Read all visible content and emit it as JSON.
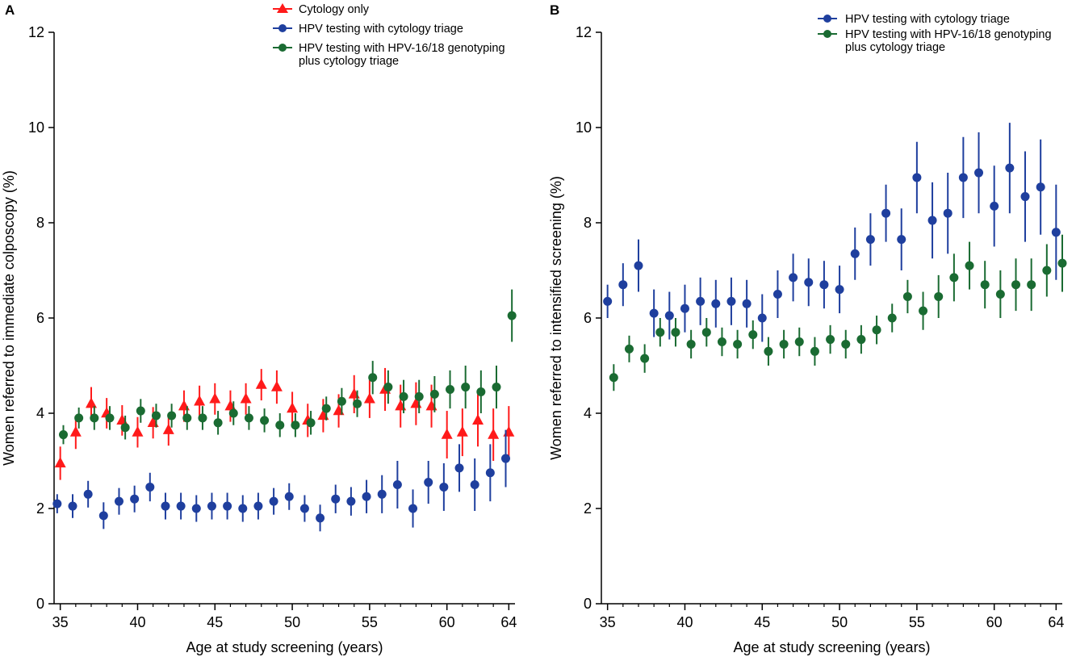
{
  "chart_data": [
    {
      "panel": "A",
      "type": "scatter",
      "xlabel": "Age at study screening (years)",
      "ylabel": "Women referred to immediate colposcopy (%)",
      "xlim": [
        34.6,
        64.4
      ],
      "ylim": [
        0,
        12
      ],
      "xticks": [
        35,
        40,
        45,
        50,
        55,
        60,
        64
      ],
      "yticks": [
        0,
        2,
        4,
        6,
        8,
        10,
        12
      ],
      "series": [
        {
          "name": "Cytology only",
          "color": "#ff1a1a",
          "marker": "triangle",
          "x": [
            35,
            36,
            37,
            38,
            39,
            40,
            41,
            42,
            43,
            44,
            45,
            46,
            47,
            48,
            49,
            50,
            51,
            52,
            53,
            54,
            55,
            56,
            57,
            58,
            59,
            60,
            61,
            62,
            63,
            64
          ],
          "y": [
            2.95,
            3.6,
            4.2,
            4.0,
            3.85,
            3.6,
            3.8,
            3.65,
            4.15,
            4.25,
            4.3,
            4.15,
            4.3,
            4.6,
            4.55,
            4.1,
            3.85,
            3.95,
            4.05,
            4.4,
            4.3,
            4.5,
            4.15,
            4.2,
            4.15,
            3.55,
            3.6,
            3.85,
            3.55,
            3.6
          ],
          "err": [
            0.35,
            0.35,
            0.35,
            0.32,
            0.32,
            0.32,
            0.33,
            0.33,
            0.33,
            0.33,
            0.33,
            0.33,
            0.33,
            0.33,
            0.35,
            0.35,
            0.35,
            0.35,
            0.35,
            0.4,
            0.4,
            0.45,
            0.45,
            0.45,
            0.45,
            0.5,
            0.5,
            0.55,
            0.55,
            0.55
          ]
        },
        {
          "name": "HPV testing with cytology triage",
          "color": "#1f3f9e",
          "marker": "circle",
          "x": [
            34.8,
            35.8,
            36.8,
            37.8,
            38.8,
            39.8,
            40.8,
            41.8,
            42.8,
            43.8,
            44.8,
            45.8,
            46.8,
            47.8,
            48.8,
            49.8,
            50.8,
            51.8,
            52.8,
            53.8,
            54.8,
            55.8,
            56.8,
            57.8,
            58.8,
            59.8,
            60.8,
            61.8,
            62.8,
            63.8
          ],
          "y": [
            2.1,
            2.05,
            2.3,
            1.85,
            2.15,
            2.2,
            2.45,
            2.05,
            2.05,
            2.0,
            2.05,
            2.05,
            2.0,
            2.05,
            2.15,
            2.25,
            2.0,
            1.8,
            2.2,
            2.15,
            2.25,
            2.3,
            2.5,
            2.0,
            2.55,
            2.45,
            2.85,
            2.5,
            2.75,
            3.05
          ],
          "err": [
            0.2,
            0.25,
            0.28,
            0.28,
            0.28,
            0.28,
            0.3,
            0.28,
            0.28,
            0.28,
            0.28,
            0.28,
            0.28,
            0.28,
            0.28,
            0.28,
            0.28,
            0.28,
            0.3,
            0.3,
            0.35,
            0.4,
            0.5,
            0.4,
            0.45,
            0.5,
            0.5,
            0.55,
            0.6,
            0.6
          ]
        },
        {
          "name": "HPV testing with HPV-16/18 genotyping plus cytology triage",
          "color": "#1a6b32",
          "marker": "circle",
          "x": [
            35.2,
            36.2,
            37.2,
            38.2,
            39.2,
            40.2,
            41.2,
            42.2,
            43.2,
            44.2,
            45.2,
            46.2,
            47.2,
            48.2,
            49.2,
            50.2,
            51.2,
            52.2,
            53.2,
            54.2,
            55.2,
            56.2,
            57.2,
            58.2,
            59.2,
            60.2,
            61.2,
            62.2,
            63.2,
            64.2
          ],
          "y": [
            3.55,
            3.9,
            3.9,
            3.9,
            3.7,
            4.05,
            3.95,
            3.95,
            3.9,
            3.9,
            3.8,
            4.0,
            3.9,
            3.85,
            3.75,
            3.75,
            3.8,
            4.1,
            4.25,
            4.2,
            4.75,
            4.55,
            4.35,
            4.35,
            4.4,
            4.5,
            4.55,
            4.45,
            4.55,
            6.05
          ],
          "err": [
            0.2,
            0.22,
            0.25,
            0.25,
            0.25,
            0.25,
            0.25,
            0.25,
            0.25,
            0.25,
            0.25,
            0.25,
            0.25,
            0.25,
            0.25,
            0.25,
            0.25,
            0.25,
            0.28,
            0.28,
            0.35,
            0.35,
            0.35,
            0.35,
            0.38,
            0.4,
            0.45,
            0.45,
            0.45,
            0.55
          ]
        }
      ]
    },
    {
      "panel": "B",
      "type": "scatter",
      "xlabel": "Age at study screening (years)",
      "ylabel": "Women referred to intensified screening (%)",
      "xlim": [
        34.6,
        64.4
      ],
      "ylim": [
        0,
        12
      ],
      "xticks": [
        35,
        40,
        45,
        50,
        55,
        60,
        64
      ],
      "yticks": [
        0,
        2,
        4,
        6,
        8,
        10,
        12
      ],
      "series": [
        {
          "name": "HPV testing with cytology triage",
          "color": "#1f3f9e",
          "marker": "circle",
          "x": [
            35.0,
            36.0,
            37.0,
            38.0,
            39.0,
            40.0,
            41.0,
            42.0,
            43.0,
            44.0,
            45.0,
            46.0,
            47.0,
            48.0,
            49.0,
            50.0,
            51.0,
            52.0,
            53.0,
            54.0,
            55.0,
            56.0,
            57.0,
            58.0,
            59.0,
            60.0,
            61.0,
            62.0,
            63.0,
            64.0
          ],
          "y": [
            6.35,
            6.7,
            7.1,
            6.1,
            6.05,
            6.2,
            6.35,
            6.3,
            6.35,
            6.3,
            6.0,
            6.5,
            6.85,
            6.75,
            6.7,
            6.6,
            7.35,
            7.65,
            8.2,
            7.65,
            8.95,
            8.05,
            8.2,
            8.95,
            9.05,
            8.35,
            9.15,
            8.55,
            8.75,
            7.8
          ],
          "err": [
            0.35,
            0.45,
            0.55,
            0.5,
            0.5,
            0.5,
            0.5,
            0.5,
            0.5,
            0.5,
            0.5,
            0.5,
            0.5,
            0.5,
            0.5,
            0.5,
            0.55,
            0.55,
            0.6,
            0.65,
            0.75,
            0.8,
            0.85,
            0.85,
            0.85,
            0.85,
            0.95,
            0.95,
            1.0,
            1.0
          ]
        },
        {
          "name": "HPV testing with HPV-16/18 genotyping plus cytology triage",
          "color": "#1a6b32",
          "marker": "circle",
          "x": [
            35.4,
            36.4,
            37.4,
            38.4,
            39.4,
            40.4,
            41.4,
            42.4,
            43.4,
            44.4,
            45.4,
            46.4,
            47.4,
            48.4,
            49.4,
            50.4,
            51.4,
            52.4,
            53.4,
            54.4,
            55.4,
            56.4,
            57.4,
            58.4,
            59.4,
            60.4,
            61.4,
            62.4,
            63.4,
            64.4
          ],
          "y": [
            4.75,
            5.35,
            5.15,
            5.7,
            5.7,
            5.45,
            5.7,
            5.5,
            5.45,
            5.65,
            5.3,
            5.45,
            5.5,
            5.3,
            5.55,
            5.45,
            5.55,
            5.75,
            6.0,
            6.45,
            6.15,
            6.45,
            6.85,
            7.1,
            6.7,
            6.5,
            6.7,
            6.7,
            7.0,
            7.15
          ],
          "err": [
            0.28,
            0.28,
            0.3,
            0.3,
            0.3,
            0.3,
            0.3,
            0.3,
            0.3,
            0.3,
            0.3,
            0.3,
            0.3,
            0.3,
            0.3,
            0.3,
            0.3,
            0.3,
            0.3,
            0.35,
            0.4,
            0.45,
            0.5,
            0.5,
            0.5,
            0.5,
            0.55,
            0.55,
            0.55,
            0.6
          ]
        }
      ]
    }
  ],
  "panels": [
    {
      "letter": "A",
      "legend": [
        "Cytology only",
        "HPV testing with cytology triage",
        [
          "HPV testing with HPV-16/18 genotyping",
          "plus cytology triage"
        ]
      ]
    },
    {
      "letter": "B",
      "legend": [
        "HPV testing with cytology triage",
        [
          "HPV testing with HPV-16/18 genotyping",
          "plus cytology triage"
        ]
      ]
    }
  ]
}
